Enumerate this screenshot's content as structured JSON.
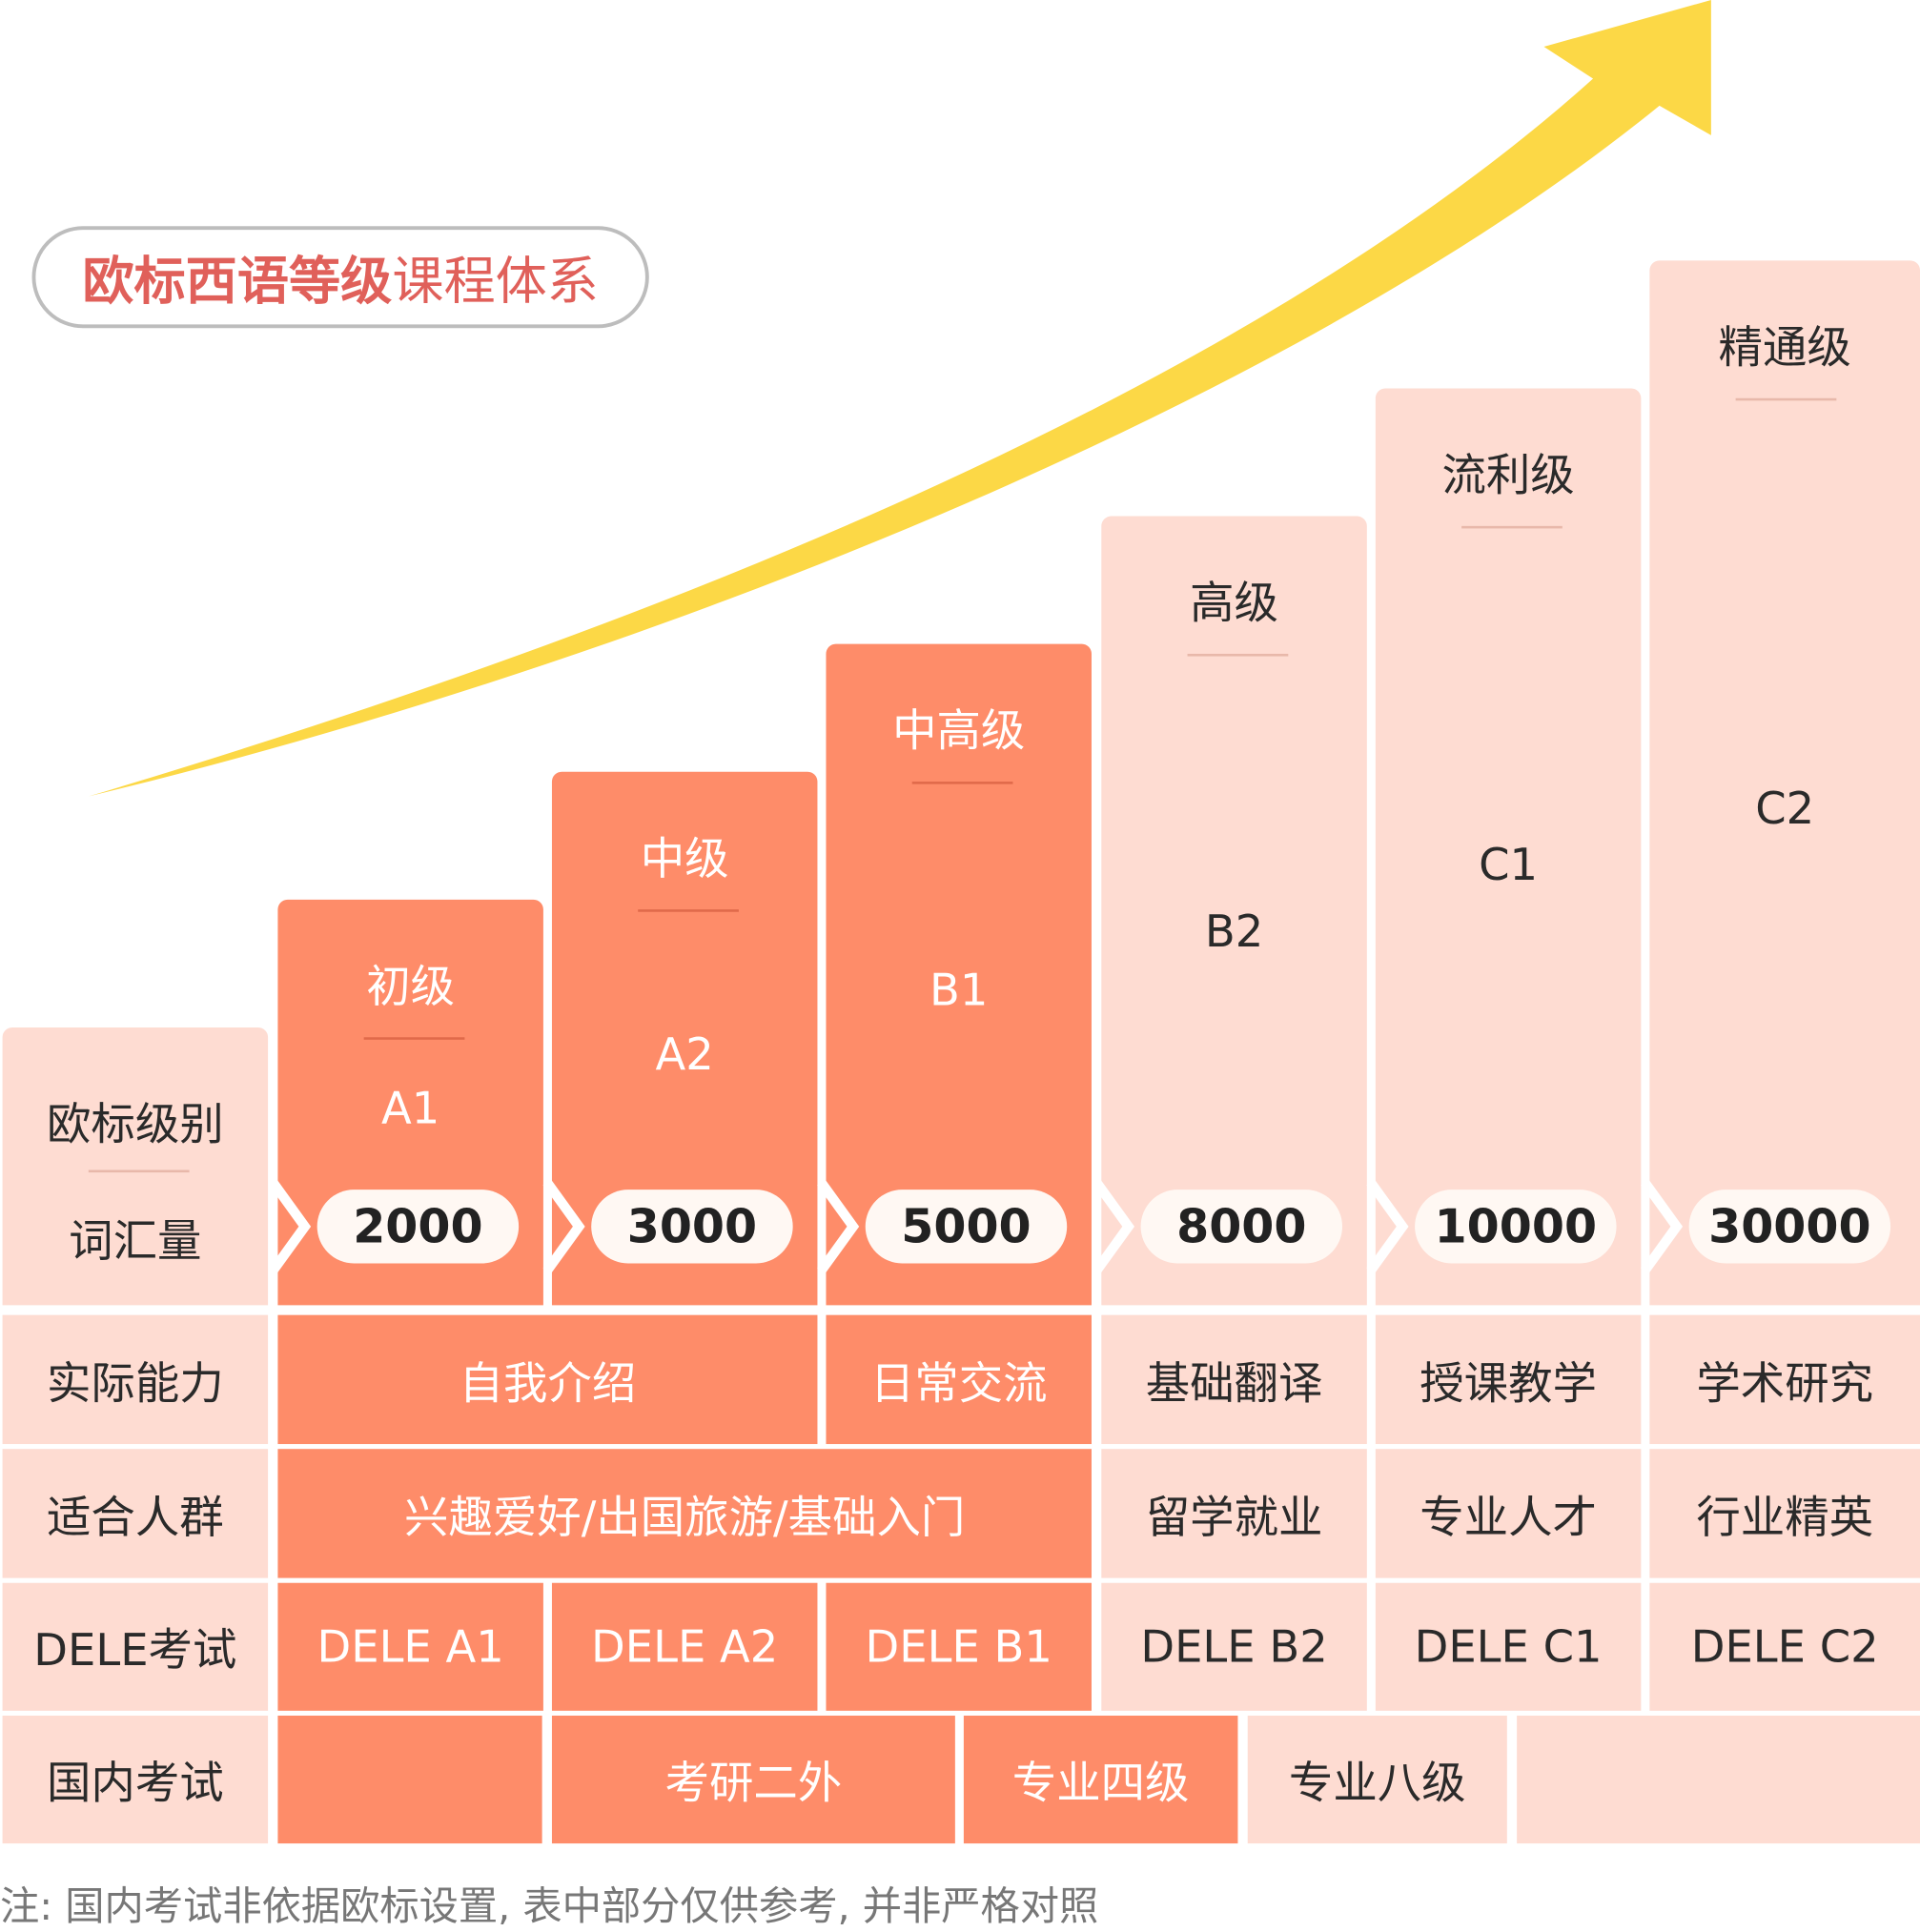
{
  "title": {
    "bold": "欧标西语等级",
    "normal": "课程体系",
    "color": "#e0605a"
  },
  "colors": {
    "dark": "#fe8c69",
    "light": "#fedcd2",
    "arrow": "#fcd846"
  },
  "row_labels": {
    "level": "欧标级别",
    "vocab": "词汇量",
    "ability": "实际能力",
    "audience": "适合人群",
    "dele": "DELE考试",
    "domestic": "国内考试"
  },
  "levels": [
    {
      "name": "初级",
      "code": "A1",
      "vocab": "2000",
      "dele": "DELE A1"
    },
    {
      "name": "中级",
      "code": "A2",
      "vocab": "3000",
      "dele": "DELE A2"
    },
    {
      "name": "中高级",
      "code": "B1",
      "vocab": "5000",
      "dele": "DELE B1"
    },
    {
      "name": "高级",
      "code": "B2",
      "vocab": "8000",
      "dele": "DELE B2"
    },
    {
      "name": "流利级",
      "code": "C1",
      "vocab": "10000",
      "dele": "DELE C1"
    },
    {
      "name": "精通级",
      "code": "C2",
      "vocab": "30000",
      "dele": "DELE C2"
    }
  ],
  "ability": [
    "自我介绍",
    "日常交流",
    "基础翻译",
    "授课教学",
    "学术研究"
  ],
  "audience": [
    "兴趣爱好/出国旅游/基础入门",
    "留学就业",
    "专业人才",
    "行业精英"
  ],
  "domestic": [
    "考研二外",
    "专业四级",
    "专业八级"
  ],
  "note": "注: 国内考试非依据欧标设置, 表中部分仅供参考, 并非严格对照"
}
